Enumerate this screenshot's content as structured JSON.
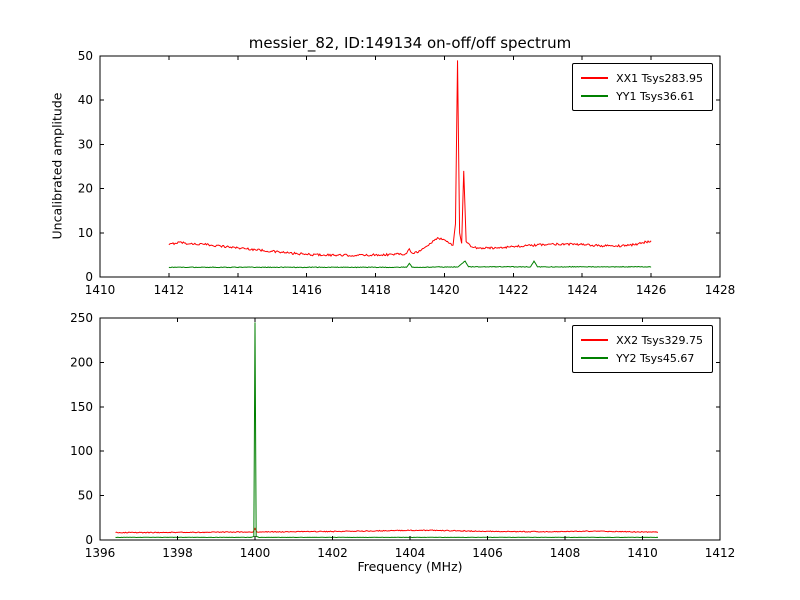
{
  "figure": {
    "title": "messier_82, ID:149134 on-off/off spectrum",
    "background": "#ffffff"
  },
  "chart_data": [
    {
      "type": "line",
      "title": "messier_82, ID:149134 on-off/off spectrum",
      "xlabel": "",
      "ylabel": "Uncalibrated amplitude",
      "xlim": [
        1410,
        1428
      ],
      "ylim": [
        0,
        50
      ],
      "xticks": [
        1410,
        1412,
        1414,
        1416,
        1418,
        1420,
        1422,
        1424,
        1426,
        1428
      ],
      "yticks": [
        0,
        10,
        20,
        30,
        40,
        50
      ],
      "grid": false,
      "legend_position": "upper right",
      "series": [
        {
          "name": "XX1 Tsys283.95",
          "color": "#ff0000",
          "noise": 0.25,
          "points": [
            [
              1412.0,
              7.3
            ],
            [
              1412.3,
              7.9
            ],
            [
              1412.6,
              7.5
            ],
            [
              1413.0,
              7.4
            ],
            [
              1413.5,
              7.0
            ],
            [
              1414.0,
              6.6
            ],
            [
              1414.5,
              6.2
            ],
            [
              1415.0,
              5.8
            ],
            [
              1415.5,
              5.4
            ],
            [
              1416.0,
              5.1
            ],
            [
              1416.5,
              5.0
            ],
            [
              1417.0,
              4.9
            ],
            [
              1417.5,
              4.9
            ],
            [
              1418.0,
              5.0
            ],
            [
              1418.5,
              5.1
            ],
            [
              1418.9,
              5.3
            ],
            [
              1418.98,
              6.4
            ],
            [
              1419.06,
              5.4
            ],
            [
              1419.3,
              5.9
            ],
            [
              1419.6,
              7.6
            ],
            [
              1419.8,
              8.9
            ],
            [
              1420.0,
              8.4
            ],
            [
              1420.15,
              7.6
            ],
            [
              1420.25,
              7.2
            ],
            [
              1420.32,
              12.0
            ],
            [
              1420.38,
              49.0
            ],
            [
              1420.44,
              10.0
            ],
            [
              1420.5,
              7.6
            ],
            [
              1420.56,
              24.0
            ],
            [
              1420.63,
              8.0
            ],
            [
              1420.8,
              6.8
            ],
            [
              1421.0,
              6.5
            ],
            [
              1421.5,
              6.6
            ],
            [
              1422.0,
              6.9
            ],
            [
              1422.5,
              7.1
            ],
            [
              1423.0,
              7.4
            ],
            [
              1423.5,
              7.5
            ],
            [
              1424.0,
              7.3
            ],
            [
              1424.5,
              7.1
            ],
            [
              1425.0,
              7.0
            ],
            [
              1425.5,
              7.3
            ],
            [
              1426.0,
              8.2
            ]
          ]
        },
        {
          "name": "YY1 Tsys36.61",
          "color": "#008000",
          "noise": 0.08,
          "points": [
            [
              1412.0,
              2.2
            ],
            [
              1418.9,
              2.2
            ],
            [
              1418.98,
              3.1
            ],
            [
              1419.06,
              2.2
            ],
            [
              1420.4,
              2.3
            ],
            [
              1420.5,
              3.0
            ],
            [
              1420.6,
              3.6
            ],
            [
              1420.7,
              2.3
            ],
            [
              1422.5,
              2.3
            ],
            [
              1422.6,
              3.6
            ],
            [
              1422.7,
              2.3
            ],
            [
              1426.0,
              2.3
            ]
          ]
        }
      ]
    },
    {
      "type": "line",
      "title": "",
      "xlabel": "Frequency (MHz)",
      "ylabel": "",
      "xlim": [
        1396,
        1412
      ],
      "ylim": [
        0,
        250
      ],
      "xticks": [
        1396,
        1398,
        1400,
        1402,
        1404,
        1406,
        1408,
        1410,
        1412
      ],
      "yticks": [
        0,
        50,
        100,
        150,
        200,
        250
      ],
      "grid": false,
      "legend_position": "upper right",
      "series": [
        {
          "name": "XX2 Tsys329.75",
          "color": "#ff0000",
          "noise": 0.5,
          "points": [
            [
              1396.4,
              8.5
            ],
            [
              1397.0,
              8.3
            ],
            [
              1398.0,
              8.6
            ],
            [
              1399.0,
              8.8
            ],
            [
              1399.95,
              9.0
            ],
            [
              1400.0,
              13.0
            ],
            [
              1400.05,
              9.0
            ],
            [
              1401.0,
              9.3
            ],
            [
              1402.0,
              9.6
            ],
            [
              1403.0,
              10.2
            ],
            [
              1404.0,
              10.9
            ],
            [
              1404.5,
              11.0
            ],
            [
              1405.0,
              10.5
            ],
            [
              1406.0,
              9.8
            ],
            [
              1407.0,
              9.3
            ],
            [
              1408.0,
              9.6
            ],
            [
              1408.8,
              10.0
            ],
            [
              1409.5,
              9.3
            ],
            [
              1410.4,
              8.8
            ]
          ]
        },
        {
          "name": "YY2 Tsys45.67",
          "color": "#008000",
          "noise": 0.15,
          "points": [
            [
              1396.4,
              3.0
            ],
            [
              1399.9,
              3.0
            ],
            [
              1399.97,
              4.0
            ],
            [
              1400.0,
              245.0
            ],
            [
              1400.03,
              4.0
            ],
            [
              1400.1,
              3.0
            ],
            [
              1410.4,
              3.0
            ]
          ]
        }
      ]
    }
  ]
}
